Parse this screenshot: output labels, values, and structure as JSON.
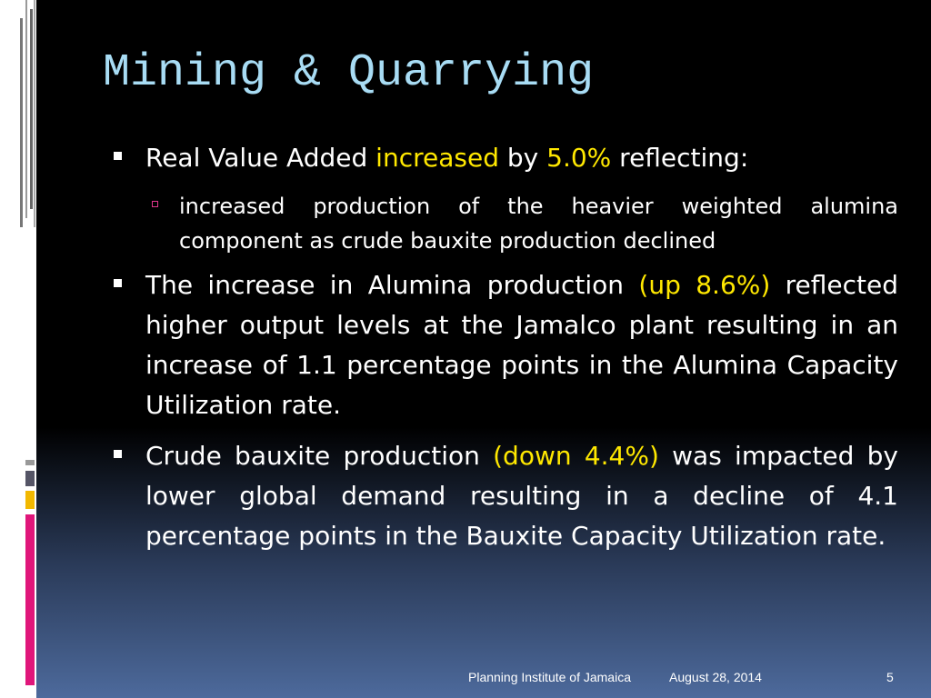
{
  "title": "Mining & Quarrying",
  "bullets": [
    {
      "segments": [
        {
          "text": "Real Value Added "
        },
        {
          "text": "increased",
          "highlight": true
        },
        {
          "text": " by "
        },
        {
          "text": "5.0%",
          "highlight": true
        },
        {
          "text": " reflecting:"
        }
      ],
      "subbullets": [
        {
          "segments": [
            {
              "text": "increased production of the heavier weighted alumina component as crude bauxite production declined"
            }
          ]
        }
      ]
    },
    {
      "segments": [
        {
          "text": "The increase in Alumina production "
        },
        {
          "text": "(up 8.6%)",
          "highlight": true
        },
        {
          "text": " reflected higher output levels at the Jamalco plant resulting in an increase of 1.1 percentage points in the Alumina Capacity Utilization rate."
        }
      ]
    },
    {
      "segments": [
        {
          "text": "Crude bauxite production "
        },
        {
          "text": "(down 4.4%)",
          "highlight": true
        },
        {
          "text": " was impacted by lower global demand resulting in a decline of 4.1 percentage points in the Bauxite Capacity Utilization rate."
        }
      ]
    }
  ],
  "footer": {
    "organization": "Planning Institute of Jamaica",
    "date": "August 28, 2014",
    "page": "5"
  }
}
